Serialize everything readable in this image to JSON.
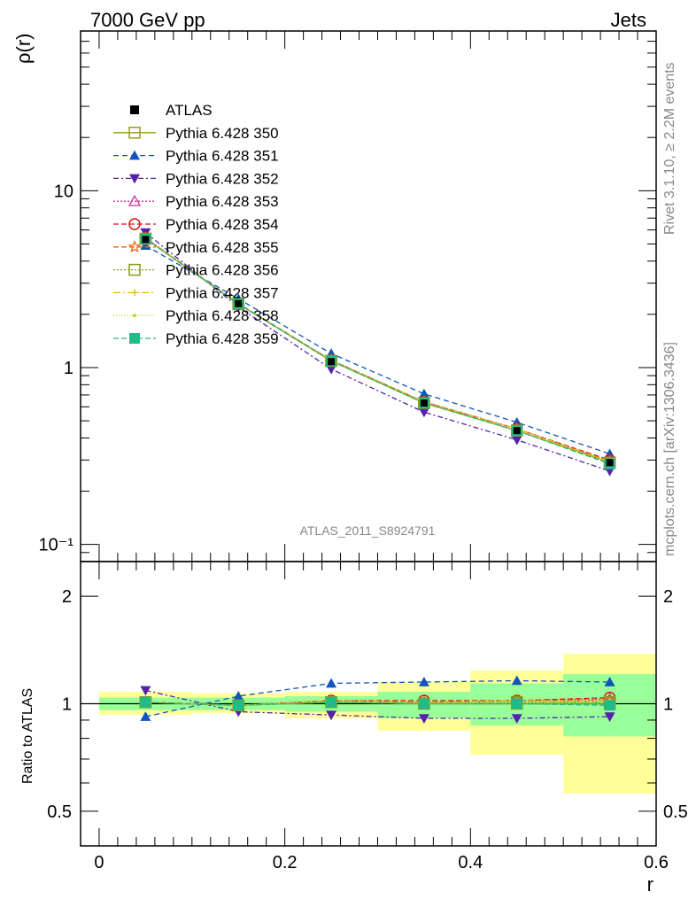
{
  "header": {
    "left": "7000 GeV pp",
    "right": "Jets"
  },
  "side_text": {
    "top": "Rivet 3.1.10, ≥ 2.2M events",
    "bottom": "mcplots.cern.ch [arXiv:1306.3436]"
  },
  "watermark": "ATLAS_2011_S8924791",
  "chart_data": [
    {
      "type": "line",
      "panel": "main",
      "ylabel": "ρ(r)",
      "yscale": "log",
      "ylim": [
        0.08,
        80
      ],
      "xlim": [
        -0.02,
        0.6
      ],
      "y_tick_labels": [
        "10⁻¹",
        "1",
        "10"
      ],
      "x": [
        0.05,
        0.15,
        0.25,
        0.35,
        0.45,
        0.55
      ],
      "series": [
        {
          "name": "ATLAS",
          "color": "#000000",
          "marker": "square-filled",
          "dash": "",
          "values": [
            5.3,
            2.3,
            1.08,
            0.63,
            0.44,
            0.29
          ]
        },
        {
          "name": "Pythia 6.428 350",
          "color": "#9a9a1a",
          "marker": "square-open",
          "dash": "",
          "values": [
            5.35,
            2.28,
            1.09,
            0.63,
            0.44,
            0.29
          ]
        },
        {
          "name": "Pythia 6.428 351",
          "color": "#1155bb",
          "marker": "triangle-up",
          "dash": "6,4",
          "values": [
            4.9,
            2.45,
            1.2,
            0.71,
            0.49,
            0.325
          ]
        },
        {
          "name": "Pythia 6.428 352",
          "color": "#5522aa",
          "marker": "triangle-down",
          "dash": "6,3,2,3",
          "values": [
            5.8,
            2.2,
            0.98,
            0.56,
            0.39,
            0.26
          ]
        },
        {
          "name": "Pythia 6.428 353",
          "color": "#cc3399",
          "marker": "triangle-up-open",
          "dash": "2,2",
          "values": [
            5.4,
            2.3,
            1.1,
            0.64,
            0.45,
            0.295
          ]
        },
        {
          "name": "Pythia 6.428 354",
          "color": "#dd1111",
          "marker": "circle-open",
          "dash": "6,3",
          "values": [
            5.4,
            2.3,
            1.1,
            0.64,
            0.45,
            0.3
          ]
        },
        {
          "name": "Pythia 6.428 355",
          "color": "#ee6611",
          "marker": "star",
          "dash": "6,3",
          "values": [
            5.4,
            2.3,
            1.1,
            0.64,
            0.45,
            0.295
          ]
        },
        {
          "name": "Pythia 6.428 356",
          "color": "#8a9a1a",
          "marker": "square-open",
          "dash": "2,2",
          "values": [
            5.35,
            2.3,
            1.09,
            0.63,
            0.44,
            0.29
          ]
        },
        {
          "name": "Pythia 6.428 357",
          "color": "#ddbb11",
          "marker": "cross",
          "dash": "8,3,2,3",
          "values": [
            5.4,
            2.3,
            1.1,
            0.64,
            0.45,
            0.295
          ]
        },
        {
          "name": "Pythia 6.428 358",
          "color": "#bbdd22",
          "marker": "dot",
          "dash": "1,2",
          "values": [
            5.35,
            2.3,
            1.09,
            0.63,
            0.44,
            0.29
          ]
        },
        {
          "name": "Pythia 6.428 359",
          "color": "#22bb88",
          "marker": "square-filled",
          "dash": "6,3",
          "values": [
            5.35,
            2.3,
            1.09,
            0.63,
            0.44,
            0.285
          ]
        }
      ]
    },
    {
      "type": "line",
      "panel": "ratio",
      "xlabel": "r",
      "ylabel": "Ratio to ATLAS",
      "yscale": "log",
      "ylim": [
        0.4,
        2.5
      ],
      "xlim": [
        -0.02,
        0.6
      ],
      "x_ticks": [
        0,
        0.2,
        0.4,
        0.6
      ],
      "x_tick_labels": [
        "0",
        "0.2",
        "0.4",
        "0.6"
      ],
      "y_ticks": [
        0.5,
        1,
        2
      ],
      "y_tick_labels": [
        "0.5",
        "1",
        "2"
      ],
      "bands": {
        "bins": [
          [
            0.0,
            0.1
          ],
          [
            0.1,
            0.2
          ],
          [
            0.2,
            0.3
          ],
          [
            0.3,
            0.4
          ],
          [
            0.4,
            0.5
          ],
          [
            0.5,
            0.6
          ]
        ],
        "yellow": [
          [
            0.93,
            1.08
          ],
          [
            0.94,
            1.07
          ],
          [
            0.91,
            1.08
          ],
          [
            0.84,
            1.15
          ],
          [
            0.72,
            1.24
          ],
          [
            0.56,
            1.38
          ]
        ],
        "green": [
          [
            0.96,
            1.04
          ],
          [
            0.96,
            1.04
          ],
          [
            0.95,
            1.05
          ],
          [
            0.91,
            1.08
          ],
          [
            0.87,
            1.14
          ],
          [
            0.81,
            1.21
          ]
        ],
        "yellow_color": "#ffff99",
        "green_color": "#99ff99"
      },
      "x": [
        0.05,
        0.15,
        0.25,
        0.35,
        0.45,
        0.55
      ],
      "series": [
        {
          "name": "Pythia 6.428 350",
          "color": "#9a9a1a",
          "marker": "square-open",
          "dash": "",
          "values": [
            1.01,
            0.99,
            1.01,
            1.0,
            1.0,
            1.0
          ]
        },
        {
          "name": "Pythia 6.428 351",
          "color": "#1155bb",
          "marker": "triangle-up",
          "dash": "6,4",
          "values": [
            0.92,
            1.05,
            1.14,
            1.15,
            1.16,
            1.15
          ]
        },
        {
          "name": "Pythia 6.428 352",
          "color": "#5522aa",
          "marker": "triangle-down",
          "dash": "6,3,2,3",
          "values": [
            1.09,
            0.95,
            0.93,
            0.91,
            0.91,
            0.92
          ]
        },
        {
          "name": "Pythia 6.428 353",
          "color": "#cc3399",
          "marker": "triangle-up-open",
          "dash": "2,2",
          "values": [
            1.01,
            0.99,
            1.02,
            1.01,
            1.02,
            1.03
          ]
        },
        {
          "name": "Pythia 6.428 354",
          "color": "#dd1111",
          "marker": "circle-open",
          "dash": "6,3",
          "values": [
            1.01,
            0.99,
            1.02,
            1.02,
            1.02,
            1.04
          ]
        },
        {
          "name": "Pythia 6.428 355",
          "color": "#ee6611",
          "marker": "star",
          "dash": "6,3",
          "values": [
            1.01,
            0.99,
            1.02,
            1.01,
            1.02,
            1.02
          ]
        },
        {
          "name": "Pythia 6.428 356",
          "color": "#8a9a1a",
          "marker": "square-open",
          "dash": "2,2",
          "values": [
            1.01,
            0.99,
            1.01,
            1.0,
            1.01,
            1.01
          ]
        },
        {
          "name": "Pythia 6.428 357",
          "color": "#ddbb11",
          "marker": "cross",
          "dash": "8,3,2,3",
          "values": [
            1.01,
            0.99,
            1.02,
            1.01,
            1.02,
            1.02
          ]
        },
        {
          "name": "Pythia 6.428 358",
          "color": "#bbdd22",
          "marker": "dot",
          "dash": "1,2",
          "values": [
            1.01,
            0.99,
            1.01,
            1.0,
            1.01,
            1.01
          ]
        },
        {
          "name": "Pythia 6.428 359",
          "color": "#22bb88",
          "marker": "square-filled",
          "dash": "6,3",
          "values": [
            1.01,
            0.99,
            1.01,
            1.0,
            1.0,
            0.99
          ]
        }
      ]
    }
  ]
}
